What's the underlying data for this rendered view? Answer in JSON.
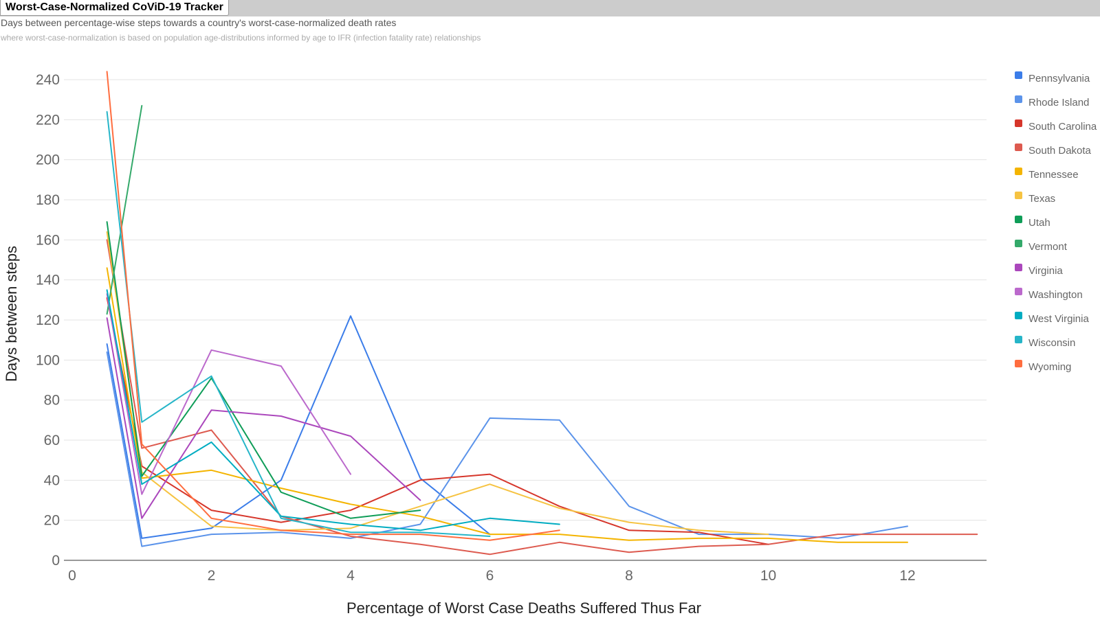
{
  "header": {
    "title": "Worst-Case-Normalized CoViD-19 Tracker",
    "subtitle": "Days between percentage-wise steps towards a country's worst-case-normalized death rates",
    "note": "where worst-case-normalization is based on population age-distributions informed by age to IFR (infection fatality rate) relationships"
  },
  "chart_data": {
    "type": "line",
    "xlabel": "Percentage of Worst Case Deaths Suffered Thus Far",
    "ylabel": "Days between steps",
    "xlim": [
      0,
      13
    ],
    "ylim": [
      0,
      240
    ],
    "xticks": [
      0,
      2,
      4,
      6,
      8,
      10,
      12
    ],
    "yticks": [
      0,
      20,
      40,
      60,
      80,
      100,
      120,
      140,
      160,
      180,
      200,
      220,
      240
    ],
    "grid": true,
    "legend_position": "right",
    "series": [
      {
        "name": "Pennsylvania",
        "color": "#3b7de9",
        "x": [
          0.5,
          1,
          2,
          3,
          4,
          5,
          6
        ],
        "y": [
          108,
          11,
          16,
          40,
          122,
          41,
          13
        ]
      },
      {
        "name": "Rhode Island",
        "color": "#5b93ea",
        "x": [
          0.5,
          1,
          2,
          3,
          4,
          5,
          6,
          7,
          8,
          9,
          10,
          11,
          12
        ],
        "y": [
          104,
          7,
          13,
          14,
          11,
          18,
          71,
          70,
          27,
          13,
          13,
          11,
          17
        ]
      },
      {
        "name": "South Carolina",
        "color": "#d6362b",
        "x": [
          0.5,
          1,
          2,
          3,
          4,
          5,
          6,
          7,
          8,
          9,
          10
        ],
        "y": [
          131,
          47,
          25,
          19,
          25,
          40,
          43,
          27,
          15,
          14,
          8
        ]
      },
      {
        "name": "South Dakota",
        "color": "#dd5a4f",
        "x": [
          0.5,
          1,
          2,
          3,
          4,
          5,
          6,
          7,
          8,
          9,
          10,
          11,
          12,
          13
        ],
        "y": [
          160,
          56,
          65,
          22,
          12,
          8,
          3,
          9,
          4,
          7,
          8,
          13,
          13,
          13
        ]
      },
      {
        "name": "Tennessee",
        "color": "#f4b400",
        "x": [
          0.5,
          1,
          2,
          3,
          4,
          5,
          6,
          7,
          8,
          9,
          10,
          11,
          12
        ],
        "y": [
          146,
          41,
          45,
          36,
          28,
          22,
          13,
          13,
          10,
          11,
          11,
          9,
          9
        ]
      },
      {
        "name": "Texas",
        "color": "#f6c342",
        "x": [
          0.5,
          1,
          2,
          3,
          4,
          5,
          6,
          7,
          8,
          9,
          10
        ],
        "y": [
          164,
          44,
          17,
          15,
          16,
          27,
          38,
          26,
          19,
          15,
          13
        ]
      },
      {
        "name": "Utah",
        "color": "#0f9d58",
        "x": [
          0.5,
          1,
          2,
          3,
          4,
          5
        ],
        "y": [
          169,
          42,
          91,
          34,
          21,
          25
        ]
      },
      {
        "name": "Vermont",
        "color": "#34a96a",
        "x": [
          0.5,
          1
        ],
        "y": [
          123,
          227
        ]
      },
      {
        "name": "Virginia",
        "color": "#ab47bc",
        "x": [
          0.5,
          1,
          2,
          3,
          4,
          5
        ],
        "y": [
          121,
          21,
          75,
          72,
          62,
          30
        ]
      },
      {
        "name": "Washington",
        "color": "#bb69cc",
        "x": [
          0.5,
          1,
          2,
          3,
          4
        ],
        "y": [
          133,
          33,
          105,
          97,
          43
        ]
      },
      {
        "name": "West Virginia",
        "color": "#00acc1",
        "x": [
          0.5,
          1,
          2,
          3,
          4,
          5,
          6,
          7
        ],
        "y": [
          135,
          38,
          59,
          22,
          18,
          15,
          21,
          18
        ]
      },
      {
        "name": "Wisconsin",
        "color": "#26b5c8",
        "x": [
          0.5,
          1,
          2,
          3,
          4,
          5,
          6
        ],
        "y": [
          224,
          69,
          92,
          21,
          14,
          14,
          12
        ]
      },
      {
        "name": "Wyoming",
        "color": "#ff6d3f",
        "x": [
          0.5,
          1,
          2,
          3,
          4,
          5,
          6,
          7
        ],
        "y": [
          244,
          58,
          21,
          15,
          13,
          13,
          10,
          15
        ]
      }
    ]
  }
}
